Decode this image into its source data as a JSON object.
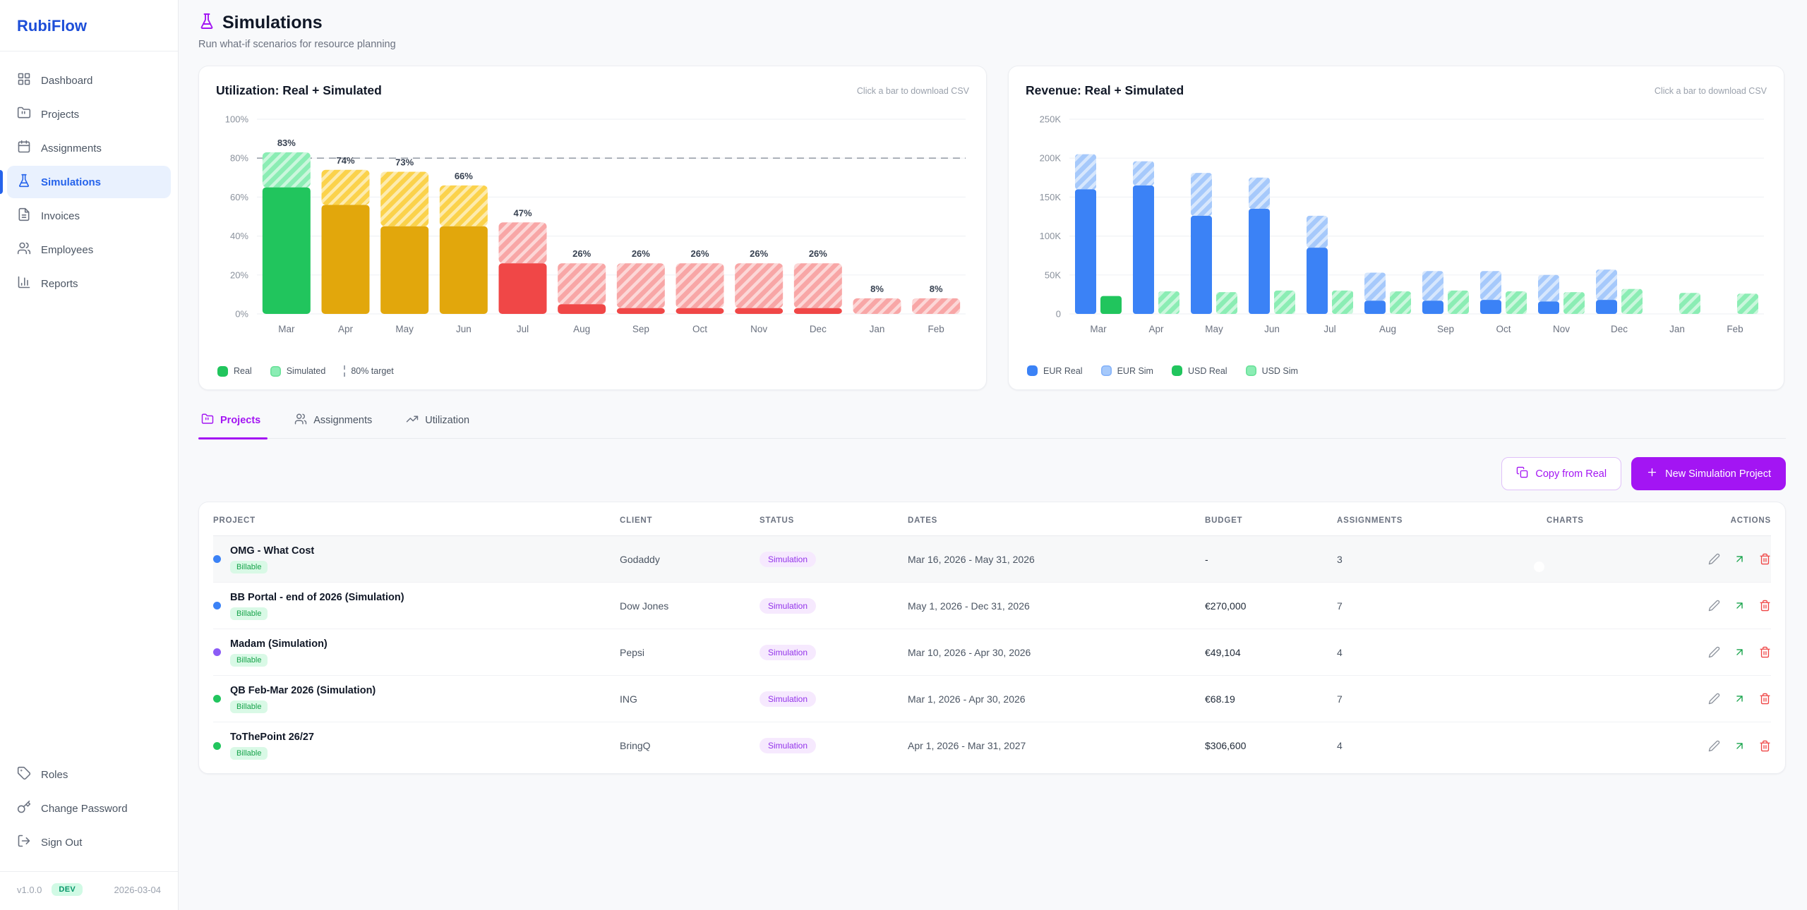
{
  "app": {
    "name": "RubiFlow",
    "version": "v1.0.0",
    "env_badge": "DEV",
    "build_date": "2026-03-04"
  },
  "sidebar": {
    "nav": [
      {
        "label": "Dashboard",
        "icon": "dashboard-icon",
        "active": false
      },
      {
        "label": "Projects",
        "icon": "folder-icon",
        "active": false
      },
      {
        "label": "Assignments",
        "icon": "calendar-icon",
        "active": false
      },
      {
        "label": "Simulations",
        "icon": "flask-icon",
        "active": true
      },
      {
        "label": "Invoices",
        "icon": "document-icon",
        "active": false
      },
      {
        "label": "Employees",
        "icon": "users-icon",
        "active": false
      },
      {
        "label": "Reports",
        "icon": "bar-chart-icon",
        "active": false
      }
    ],
    "footer_nav": [
      {
        "label": "Roles",
        "icon": "tag-icon"
      },
      {
        "label": "Change Password",
        "icon": "key-icon"
      },
      {
        "label": "Sign Out",
        "icon": "logout-icon"
      }
    ]
  },
  "header": {
    "title": "Simulations",
    "subtitle": "Run what-if scenarios for resource planning"
  },
  "colors": {
    "accent": "#a315f3",
    "bar_green": "#21c55d",
    "bar_green_light": "#8bedb4",
    "bar_amber": "#e2a70c",
    "bar_amber_light": "#fbd24b",
    "bar_red": "#f04747",
    "bar_red_light": "#f8a6a6",
    "bar_blue": "#3b82f6",
    "bar_blue_light": "#a6c9fb",
    "grid": "#f0f2f5",
    "axis_text": "#8a919c",
    "label_text": "#374151",
    "target_line": "#9aa1ab"
  },
  "chart_data": [
    {
      "id": "utilization",
      "type": "bar",
      "title": "Utilization: Real + Simulated",
      "subtitle": "Click a bar to download CSV",
      "categories": [
        "Mar",
        "Apr",
        "May",
        "Jun",
        "Jul",
        "Aug",
        "Sep",
        "Oct",
        "Nov",
        "Dec",
        "Jan",
        "Feb"
      ],
      "series": [
        {
          "name": "Real",
          "values": [
            65,
            56,
            45,
            45,
            26,
            5,
            3,
            3,
            3,
            3,
            0,
            0
          ]
        },
        {
          "name": "Simulated",
          "values": [
            18,
            18,
            28,
            21,
            21,
            21,
            23,
            23,
            23,
            23,
            8,
            8
          ]
        }
      ],
      "totals": [
        83,
        74,
        73,
        66,
        47,
        26,
        26,
        26,
        26,
        26,
        8,
        8
      ],
      "total_labels": [
        "83%",
        "74%",
        "73%",
        "66%",
        "47%",
        "26%",
        "26%",
        "26%",
        "26%",
        "26%",
        "8%",
        "8%"
      ],
      "bar_colors": [
        "green",
        "amber",
        "amber",
        "amber",
        "red",
        "red",
        "red",
        "red",
        "red",
        "red",
        "red",
        "red"
      ],
      "target": {
        "value": 80,
        "label": "80% target"
      },
      "ylim": [
        0,
        100
      ],
      "yticks": [
        0,
        20,
        40,
        60,
        80,
        100
      ],
      "ytick_labels": [
        "0%",
        "20%",
        "40%",
        "60%",
        "80%",
        "100%"
      ],
      "legend": [
        {
          "label": "Real",
          "swatch": "solid-green"
        },
        {
          "label": "Simulated",
          "swatch": "hatch-green"
        },
        {
          "label": "80% target",
          "swatch": "dash"
        }
      ]
    },
    {
      "id": "revenue",
      "type": "bar",
      "title": "Revenue: Real + Simulated",
      "subtitle": "Click a bar to download CSV",
      "categories": [
        "Mar",
        "Apr",
        "May",
        "Jun",
        "Jul",
        "Aug",
        "Sep",
        "Oct",
        "Nov",
        "Dec",
        "Jan",
        "Feb"
      ],
      "series": [
        {
          "name": "EUR Real",
          "values": [
            160,
            165,
            126,
            135,
            85,
            17,
            17,
            18,
            16,
            18,
            0,
            0
          ]
        },
        {
          "name": "EUR Sim",
          "values": [
            45,
            31,
            55,
            40,
            41,
            36,
            38,
            37,
            34,
            39,
            0,
            0
          ]
        },
        {
          "name": "USD Real",
          "values": [
            23,
            0,
            0,
            0,
            0,
            0,
            0,
            0,
            0,
            0,
            0,
            0
          ]
        },
        {
          "name": "USD Sim",
          "values": [
            0,
            29,
            28,
            30,
            30,
            29,
            30,
            29,
            28,
            32,
            27,
            26
          ]
        }
      ],
      "ylim": [
        0,
        250
      ],
      "yticks": [
        0,
        50,
        100,
        150,
        200,
        250
      ],
      "ytick_labels": [
        "0",
        "50K",
        "100K",
        "150K",
        "200K",
        "250K"
      ],
      "legend": [
        {
          "label": "EUR Real",
          "swatch": "solid-blue"
        },
        {
          "label": "EUR Sim",
          "swatch": "hatch-blue"
        },
        {
          "label": "USD Real",
          "swatch": "solid-green"
        },
        {
          "label": "USD Sim",
          "swatch": "hatch-green"
        }
      ]
    }
  ],
  "tabs": [
    {
      "label": "Projects",
      "icon": "folder-icon",
      "active": true
    },
    {
      "label": "Assignments",
      "icon": "users-icon",
      "active": false
    },
    {
      "label": "Utilization",
      "icon": "trending-up-icon",
      "active": false
    }
  ],
  "toolbar": {
    "copy_from_real": "Copy from Real",
    "new_simulation": "New Simulation Project"
  },
  "table": {
    "columns": [
      "PROJECT",
      "CLIENT",
      "STATUS",
      "DATES",
      "BUDGET",
      "ASSIGNMENTS",
      "CHARTS",
      "ACTIONS"
    ],
    "rows": [
      {
        "project": "OMG - What Cost",
        "project_badge": "Billable",
        "dot_color": "#3b82f6",
        "client": "Godaddy",
        "status": "Simulation",
        "dates": "Mar 16, 2026 - May 31, 2026",
        "budget": "-",
        "assignments": "3",
        "charts_enabled": true,
        "highlighted": true
      },
      {
        "project": "BB Portal - end of 2026 (Simulation)",
        "project_badge": "Billable",
        "dot_color": "#3b82f6",
        "client": "Dow Jones",
        "status": "Simulation",
        "dates": "May 1, 2026 - Dec 31, 2026",
        "budget": "€270,000",
        "assignments": "7",
        "charts_enabled": true,
        "highlighted": false
      },
      {
        "project": "Madam (Simulation)",
        "project_badge": "Billable",
        "dot_color": "#8b5cf6",
        "client": "Pepsi",
        "status": "Simulation",
        "dates": "Mar 10, 2026 - Apr 30, 2026",
        "budget": "€49,104",
        "assignments": "4",
        "charts_enabled": true,
        "highlighted": false
      },
      {
        "project": "QB Feb-Mar 2026 (Simulation)",
        "project_badge": "Billable",
        "dot_color": "#22c55e",
        "client": "ING",
        "status": "Simulation",
        "dates": "Mar 1, 2026 - Apr 30, 2026",
        "budget": "€68.19",
        "assignments": "7",
        "charts_enabled": true,
        "highlighted": false
      },
      {
        "project": "ToThePoint 26/27",
        "project_badge": "Billable",
        "dot_color": "#22c55e",
        "client": "BringQ",
        "status": "Simulation",
        "dates": "Apr 1, 2026 - Mar 31, 2027",
        "budget": "$306,600",
        "assignments": "4",
        "charts_enabled": true,
        "highlighted": false
      }
    ]
  }
}
